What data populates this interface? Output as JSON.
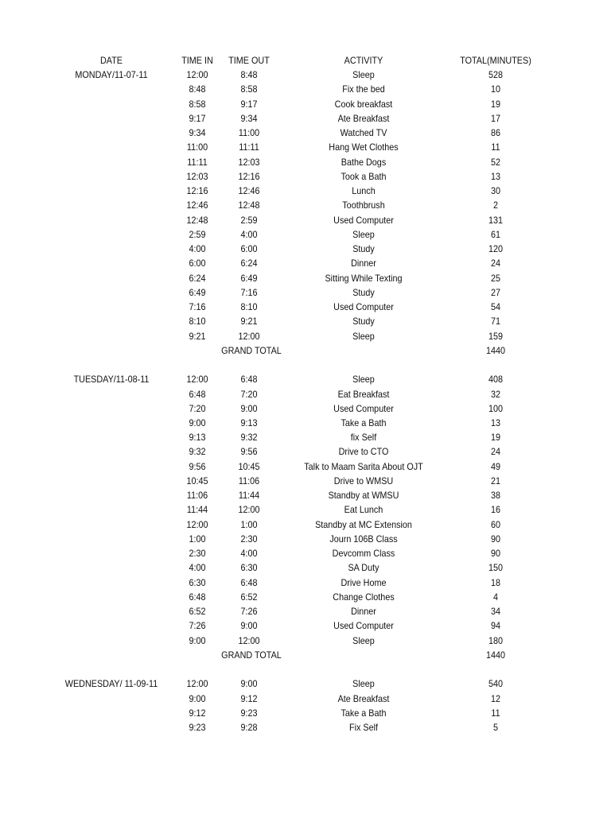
{
  "headers": {
    "date": "DATE",
    "time_in": "TIME IN",
    "time_out": "TIME OUT",
    "activity": "ACTIVITY",
    "total": "TOTAL(MINUTES)"
  },
  "days": [
    {
      "date": "MONDAY/11-07-11",
      "rows": [
        [
          "12:00",
          "8:48",
          "Sleep",
          "528"
        ],
        [
          "8:48",
          "8:58",
          "Fix the bed",
          "10"
        ],
        [
          "8:58",
          "9:17",
          "Cook breakfast",
          "19"
        ],
        [
          "9:17",
          "9:34",
          "Ate Breakfast",
          "17"
        ],
        [
          "9:34",
          "11:00",
          "Watched TV",
          "86"
        ],
        [
          "11:00",
          "11:11",
          "Hang Wet Clothes",
          "11"
        ],
        [
          "11:11",
          "12:03",
          "Bathe Dogs",
          "52"
        ],
        [
          "12:03",
          "12:16",
          "Took a Bath",
          "13"
        ],
        [
          "12:16",
          "12:46",
          "Lunch",
          "30"
        ],
        [
          "12:46",
          "12:48",
          "Toothbrush",
          "2"
        ],
        [
          "12:48",
          "2:59",
          "Used Computer",
          "131"
        ],
        [
          "2:59",
          "4:00",
          "Sleep",
          "61"
        ],
        [
          "4:00",
          "6:00",
          "Study",
          "120"
        ],
        [
          "6:00",
          "6:24",
          "Dinner",
          "24"
        ],
        [
          "6:24",
          "6:49",
          "Sitting While Texting",
          "25"
        ],
        [
          "6:49",
          "7:16",
          "Study",
          "27"
        ],
        [
          "7:16",
          "8:10",
          "Used Computer",
          "54"
        ],
        [
          "8:10",
          "9:21",
          "Study",
          "71"
        ],
        [
          "9:21",
          "12:00",
          "Sleep",
          "159"
        ]
      ],
      "grand_total_label": "GRAND TOTAL",
      "grand_total": "1440"
    },
    {
      "date": "TUESDAY/11-08-11",
      "rows": [
        [
          "12:00",
          "6:48",
          "Sleep",
          "408"
        ],
        [
          "6:48",
          "7:20",
          "Eat Breakfast",
          "32"
        ],
        [
          "7:20",
          "9:00",
          "Used Computer",
          "100"
        ],
        [
          "9:00",
          "9:13",
          "Take a Bath",
          "13"
        ],
        [
          "9:13",
          "9:32",
          "fix Self",
          "19"
        ],
        [
          "9:32",
          "9:56",
          "Drive to CTO",
          "24"
        ],
        [
          "9:56",
          "10:45",
          "Talk to Maam Sarita About OJT",
          "49"
        ],
        [
          "10:45",
          "11:06",
          "Drive to WMSU",
          "21"
        ],
        [
          "11:06",
          "11:44",
          "Standby at WMSU",
          "38"
        ],
        [
          "11:44",
          "12:00",
          "Eat Lunch",
          "16"
        ],
        [
          "12:00",
          "1:00",
          "Standby at MC Extension",
          "60"
        ],
        [
          "1:00",
          "2:30",
          "Journ 106B Class",
          "90"
        ],
        [
          "2:30",
          "4:00",
          "Devcomm Class",
          "90"
        ],
        [
          "4:00",
          "6:30",
          "SA Duty",
          "150"
        ],
        [
          "6:30",
          "6:48",
          "Drive Home",
          "18"
        ],
        [
          "6:48",
          "6:52",
          "Change Clothes",
          "4"
        ],
        [
          "6:52",
          "7:26",
          "Dinner",
          "34"
        ],
        [
          "7:26",
          "9:00",
          "Used Computer",
          "94"
        ],
        [
          "9:00",
          "12:00",
          "Sleep",
          "180"
        ]
      ],
      "grand_total_label": "GRAND TOTAL",
      "grand_total": "1440"
    },
    {
      "date": "WEDNESDAY/ 11-09-11",
      "rows": [
        [
          "12:00",
          "9:00",
          "Sleep",
          "540"
        ],
        [
          "9:00",
          "9:12",
          "Ate Breakfast",
          "12"
        ],
        [
          "9:12",
          "9:23",
          "Take a Bath",
          "11"
        ],
        [
          "9:23",
          "9:28",
          "Fix Self",
          "5"
        ]
      ]
    }
  ]
}
